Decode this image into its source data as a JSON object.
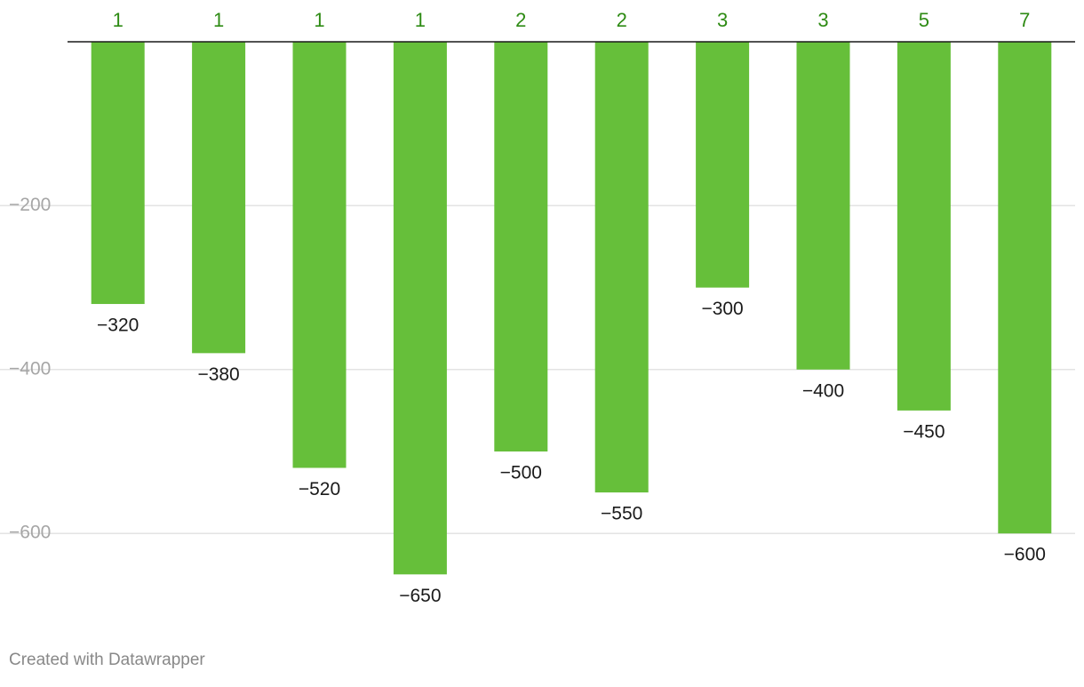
{
  "chart_data": {
    "type": "bar",
    "orientation": "vertical",
    "categories": [
      "1",
      "1",
      "1",
      "1",
      "2",
      "2",
      "3",
      "3",
      "5",
      "7"
    ],
    "values": [
      -320,
      -380,
      -520,
      -650,
      -500,
      -550,
      -300,
      -400,
      -450,
      -600
    ],
    "value_labels": [
      "−320",
      "−380",
      "−520",
      "−650",
      "−500",
      "−550",
      "−300",
      "−400",
      "−450",
      "−600"
    ],
    "title": "",
    "xlabel": "",
    "ylabel": "",
    "ylim": [
      -650,
      0
    ],
    "yticks": [
      -200,
      -400,
      -600
    ],
    "ytick_labels": [
      "−200",
      "−400",
      "−600"
    ],
    "x_axis_position": "top",
    "grid": true,
    "legend": "none",
    "colors": {
      "bar": "#66bf3a",
      "category_label": "#2e8b14",
      "value_label": "#1a1a1a",
      "tick_label": "#a6a6a6",
      "gridline": "#e3e3e3",
      "baseline": "#1a1a1a"
    }
  },
  "footer": {
    "credit": "Created with Datawrapper"
  }
}
